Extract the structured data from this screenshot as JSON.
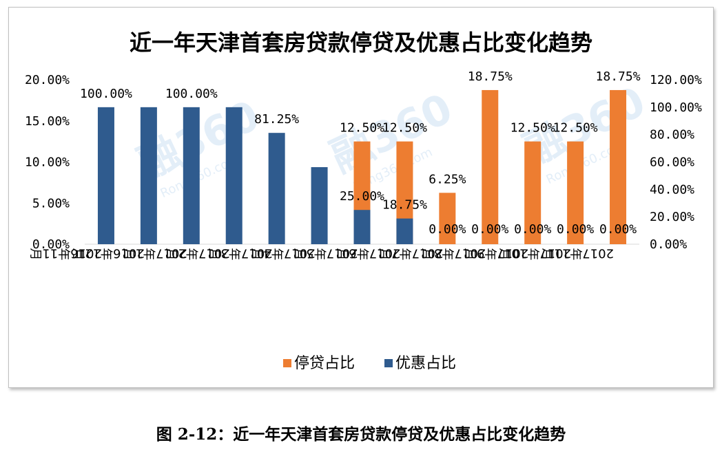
{
  "chart_data": {
    "type": "bar",
    "title": "近一年天津首套房贷款停贷及优惠占比变化趋势",
    "categories": [
      "2016年11月",
      "2016年12月",
      "2017年1月",
      "2017年2月",
      "2017年3月",
      "2017年4月",
      "2017年5月",
      "2017年6月",
      "2017年7月",
      "2017年8月",
      "2017年9月",
      "2017年10月",
      "2017年11月"
    ],
    "series": [
      {
        "name": "停贷占比",
        "axis": "left",
        "color": "#ed7d31",
        "values": [
          0,
          0,
          0,
          0,
          0,
          0,
          12.5,
          12.5,
          6.25,
          18.75,
          12.5,
          12.5,
          18.75
        ],
        "labels": [
          "",
          "",
          "",
          "",
          "",
          "",
          "12.50%",
          "12.50%",
          "6.25%",
          "18.75%",
          "12.50%",
          "12.50%",
          "18.75%"
        ]
      },
      {
        "name": "优惠占比",
        "axis": "right",
        "color": "#2f5b8e",
        "values": [
          100,
          100,
          100,
          100,
          81.25,
          56.25,
          25,
          18.75,
          0,
          0,
          0,
          0,
          0
        ],
        "labels": [
          "100.00%",
          "",
          "100.00%",
          "",
          "81.25%",
          "",
          "25.00%",
          "18.75%",
          "0.00%",
          "0.00%",
          "0.00%",
          "0.00%",
          "0.00%"
        ]
      }
    ],
    "y_left": {
      "min": 0,
      "max": 20,
      "ticks": [
        "0.00%",
        "5.00%",
        "10.00%",
        "15.00%",
        "20.00%"
      ]
    },
    "y_right": {
      "min": 0,
      "max": 120,
      "ticks": [
        "0.00%",
        "20.00%",
        "40.00%",
        "60.00%",
        "80.00%",
        "100.00%",
        "120.00%"
      ]
    },
    "legend": {
      "position": "bottom"
    },
    "grid": false
  },
  "caption": "图 2-12：近一年天津首套房贷款停贷及优惠占比变化趋势",
  "watermark": {
    "text": "融360",
    "subtext": "Rong360.com",
    "color": "#9cc3e6"
  }
}
